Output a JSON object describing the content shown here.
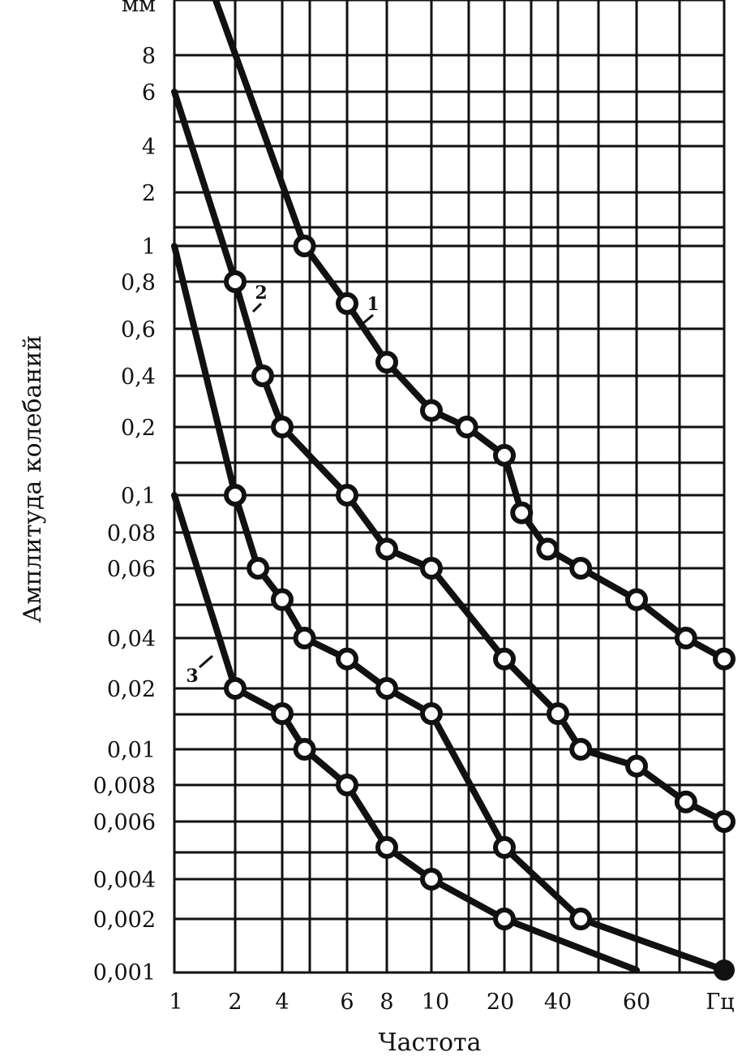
{
  "chart_data": {
    "type": "line",
    "xlabel": "Частота",
    "ylabel": "Амплитуда колебаний",
    "x_unit": "Гц",
    "y_unit": "мм",
    "grid": true,
    "x_ticks": [
      "1",
      "2",
      "4",
      "6",
      "8",
      "10",
      "20",
      "40",
      "60",
      "Гц"
    ],
    "y_ticks": [
      "мм",
      "8",
      "6",
      "4",
      "2",
      "1",
      "0,8",
      "0,6",
      "0,4",
      "0,2",
      "0,1",
      "0,08",
      "0,06",
      "0,04",
      "0,02",
      "0,01",
      "0,008",
      "0,006",
      "0,004",
      "0,002",
      "0,001"
    ],
    "series": [
      {
        "name": "1",
        "points": [
          {
            "x": 1.6,
            "y": 12,
            "marker": false
          },
          {
            "x": 4.6,
            "y": 1,
            "marker": true
          },
          {
            "x": 6,
            "y": 0.7,
            "marker": true
          },
          {
            "x": 8,
            "y": 0.45,
            "marker": true
          },
          {
            "x": 10,
            "y": 0.25,
            "marker": true
          },
          {
            "x": 14,
            "y": 0.2,
            "marker": true
          },
          {
            "x": 20,
            "y": 0.15,
            "marker": true
          },
          {
            "x": 25,
            "y": 0.09,
            "marker": true
          },
          {
            "x": 35,
            "y": 0.07,
            "marker": true
          },
          {
            "x": 45,
            "y": 0.06,
            "marker": true
          },
          {
            "x": 60,
            "y": 0.05,
            "marker": true
          },
          {
            "x": 80,
            "y": 0.04,
            "marker": true
          },
          {
            "x": 100,
            "y": 0.03,
            "marker": true
          }
        ]
      },
      {
        "name": "2",
        "points": [
          {
            "x": 1,
            "y": 6,
            "marker": false
          },
          {
            "x": 2,
            "y": 0.8,
            "marker": true
          },
          {
            "x": 3,
            "y": 0.4,
            "marker": true
          },
          {
            "x": 4,
            "y": 0.2,
            "marker": true
          },
          {
            "x": 6,
            "y": 0.1,
            "marker": true
          },
          {
            "x": 8,
            "y": 0.07,
            "marker": true
          },
          {
            "x": 10,
            "y": 0.06,
            "marker": true
          },
          {
            "x": 20,
            "y": 0.03,
            "marker": true
          },
          {
            "x": 40,
            "y": 0.015,
            "marker": true
          },
          {
            "x": 45,
            "y": 0.01,
            "marker": true
          },
          {
            "x": 60,
            "y": 0.009,
            "marker": true
          },
          {
            "x": 80,
            "y": 0.007,
            "marker": true
          },
          {
            "x": 100,
            "y": 0.006,
            "marker": true
          }
        ]
      },
      {
        "name": "",
        "points": [
          {
            "x": 1,
            "y": 1,
            "marker": false
          },
          {
            "x": 2,
            "y": 0.1,
            "marker": true
          },
          {
            "x": 2.8,
            "y": 0.06,
            "marker": true
          },
          {
            "x": 4,
            "y": 0.05,
            "marker": true
          },
          {
            "x": 4.6,
            "y": 0.04,
            "marker": true
          },
          {
            "x": 6,
            "y": 0.03,
            "marker": true
          },
          {
            "x": 8,
            "y": 0.02,
            "marker": true
          },
          {
            "x": 10,
            "y": 0.015,
            "marker": true
          },
          {
            "x": 20,
            "y": 0.005,
            "marker": true
          },
          {
            "x": 45,
            "y": 0.002,
            "marker": true
          },
          {
            "x": 100,
            "y": 0.001,
            "marker": true
          }
        ]
      },
      {
        "name": "3",
        "points": [
          {
            "x": 1,
            "y": 0.1,
            "marker": false
          },
          {
            "x": 2,
            "y": 0.02,
            "marker": true
          },
          {
            "x": 4,
            "y": 0.015,
            "marker": true
          },
          {
            "x": 4.6,
            "y": 0.01,
            "marker": true
          },
          {
            "x": 6,
            "y": 0.008,
            "marker": true
          },
          {
            "x": 8,
            "y": 0.005,
            "marker": true
          },
          {
            "x": 10,
            "y": 0.004,
            "marker": true
          },
          {
            "x": 20,
            "y": 0.002,
            "marker": true
          },
          {
            "x": 60,
            "y": 0.001,
            "marker": false
          }
        ]
      }
    ]
  }
}
